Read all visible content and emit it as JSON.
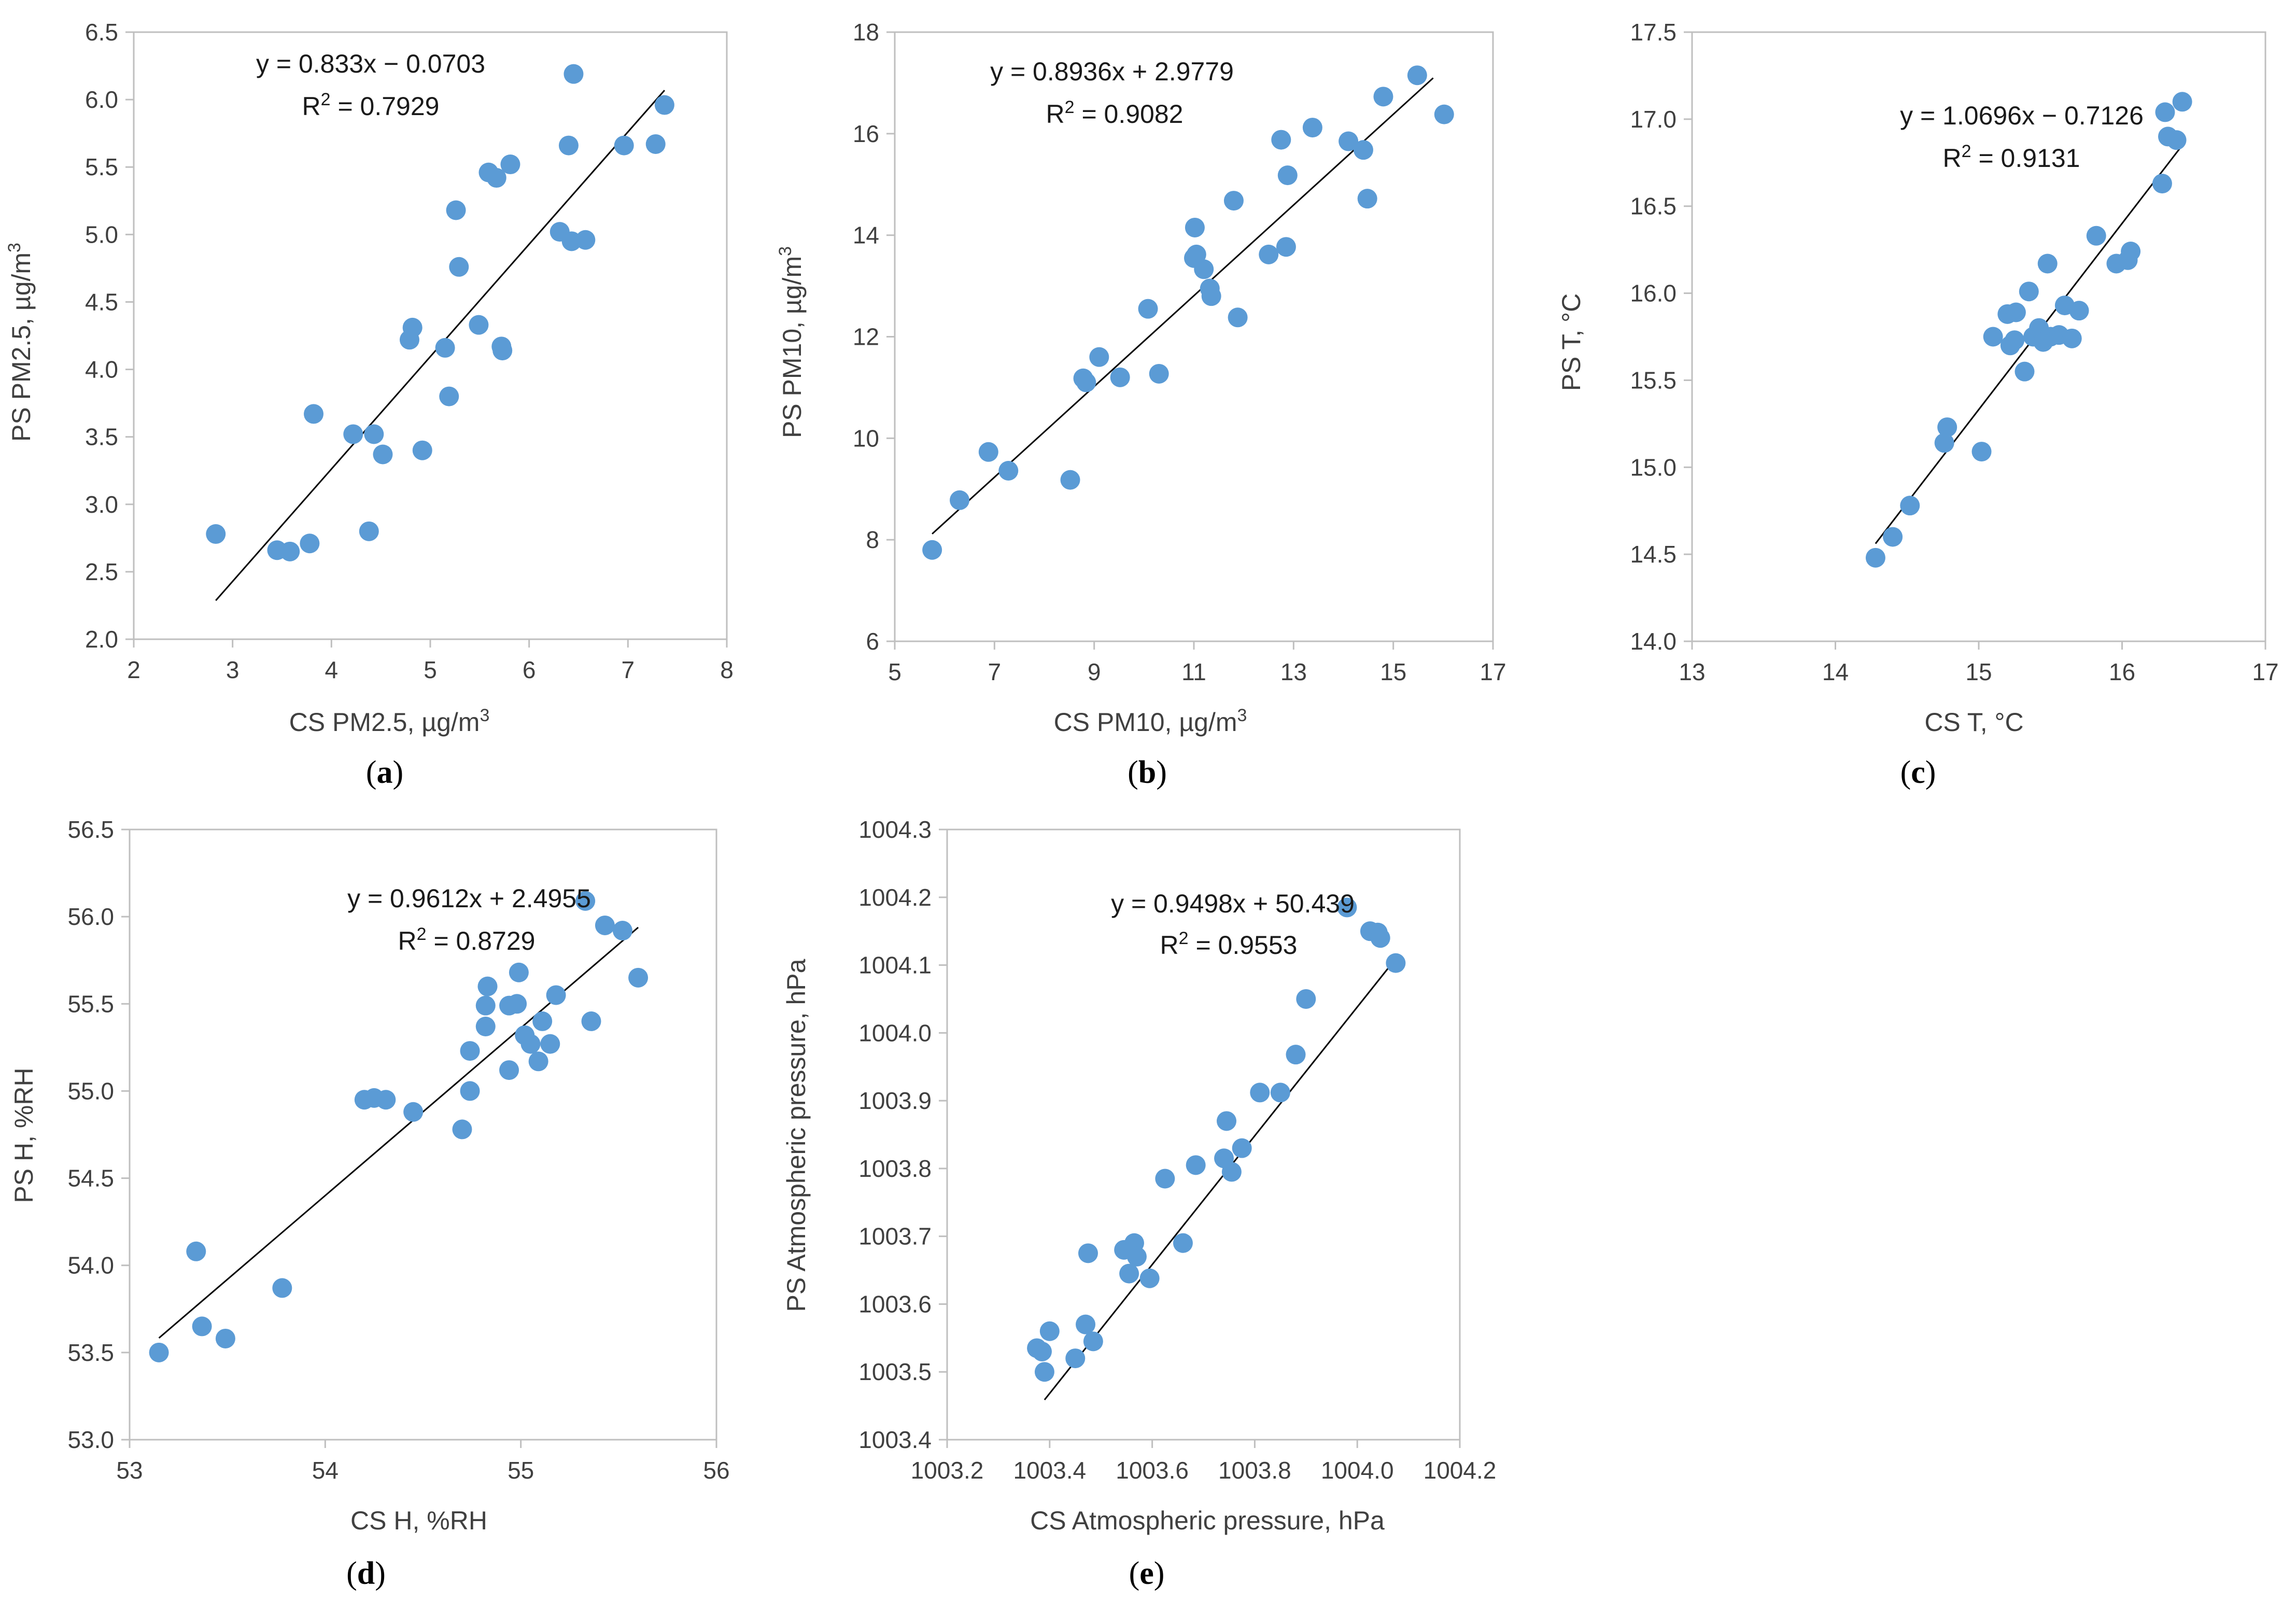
{
  "colors": {
    "point": "#5b9bd5",
    "trendline": "#000000",
    "axis": "#bfbfbf"
  },
  "chart_data": [
    {
      "type": "scatter",
      "caption_letter": "a",
      "title": "",
      "xlabel": "CS PM2.5, µg/m3",
      "ylabel": "PS PM2.5, µg/m3",
      "xlabel_main": "CS PM2.5, µg/m",
      "ylabel_main": "PS PM2.5, µg/m",
      "unit_sup": "3",
      "xlim": [
        2,
        8
      ],
      "ylim": [
        2.0,
        6.5
      ],
      "xticks": [
        "2",
        "3",
        "4",
        "5",
        "6",
        "7",
        "8"
      ],
      "yticks": [
        "2.0",
        "2.5",
        "3.0",
        "3.5",
        "4.0",
        "4.5",
        "5.0",
        "5.5",
        "6.0",
        "6.5"
      ],
      "equation": "y = 0.833x − 0.0703",
      "r2_prefix": "R",
      "r2_sup": "2",
      "r2_value": " = 0.7929",
      "trendline": {
        "slope": 0.833,
        "intercept": -0.0703,
        "x_range": [
          2.83,
          7.37
        ]
      },
      "points": [
        [
          2.83,
          2.78
        ],
        [
          3.45,
          2.66
        ],
        [
          3.58,
          2.65
        ],
        [
          3.78,
          2.71
        ],
        [
          3.82,
          3.67
        ],
        [
          4.22,
          3.52
        ],
        [
          4.38,
          2.8
        ],
        [
          4.43,
          3.52
        ],
        [
          4.52,
          3.37
        ],
        [
          4.79,
          4.22
        ],
        [
          4.82,
          4.31
        ],
        [
          4.92,
          3.4
        ],
        [
          5.15,
          4.16
        ],
        [
          5.19,
          3.8
        ],
        [
          5.26,
          5.18
        ],
        [
          5.29,
          4.76
        ],
        [
          5.49,
          4.33
        ],
        [
          5.59,
          5.46
        ],
        [
          5.67,
          5.42
        ],
        [
          5.72,
          4.17
        ],
        [
          5.73,
          4.14
        ],
        [
          5.81,
          5.52
        ],
        [
          6.31,
          5.02
        ],
        [
          6.4,
          5.66
        ],
        [
          6.43,
          4.95
        ],
        [
          6.45,
          6.19
        ],
        [
          6.57,
          4.96
        ],
        [
          6.96,
          5.66
        ],
        [
          7.28,
          5.67
        ],
        [
          7.37,
          5.96
        ]
      ]
    },
    {
      "type": "scatter",
      "caption_letter": "b",
      "title": "",
      "xlabel": "CS PM10, µg/m3",
      "ylabel": "PS PM10, µg/m3",
      "xlabel_main": "CS PM10, µg/m",
      "ylabel_main": "PS PM10, µg/m",
      "unit_sup": "3",
      "xlim": [
        5,
        17
      ],
      "ylim": [
        6,
        18
      ],
      "xticks": [
        "5",
        "7",
        "9",
        "11",
        "13",
        "15",
        "17"
      ],
      "yticks": [
        "6",
        "8",
        "10",
        "12",
        "14",
        "16",
        "18"
      ],
      "equation": "y = 0.8936x + 2.9779",
      "r2_prefix": "R",
      "r2_sup": "2",
      "r2_value": " = 0.9082",
      "trendline": {
        "slope": 0.8936,
        "intercept": 2.9779,
        "x_range": [
          5.75,
          15.8
        ]
      },
      "points": [
        [
          5.75,
          7.8
        ],
        [
          6.3,
          8.78
        ],
        [
          6.88,
          9.73
        ],
        [
          7.28,
          9.36
        ],
        [
          8.52,
          9.18
        ],
        [
          8.78,
          11.18
        ],
        [
          8.84,
          11.1
        ],
        [
          9.1,
          11.6
        ],
        [
          9.52,
          11.2
        ],
        [
          10.08,
          12.55
        ],
        [
          10.3,
          11.27
        ],
        [
          11.0,
          13.55
        ],
        [
          11.02,
          14.15
        ],
        [
          11.05,
          13.62
        ],
        [
          11.2,
          13.33
        ],
        [
          11.32,
          12.95
        ],
        [
          11.35,
          12.8
        ],
        [
          11.8,
          14.68
        ],
        [
          11.88,
          12.38
        ],
        [
          12.5,
          13.62
        ],
        [
          12.75,
          15.88
        ],
        [
          12.85,
          13.77
        ],
        [
          12.88,
          15.18
        ],
        [
          13.38,
          16.12
        ],
        [
          14.1,
          15.85
        ],
        [
          14.4,
          15.68
        ],
        [
          14.48,
          14.72
        ],
        [
          14.8,
          16.73
        ],
        [
          15.48,
          17.15
        ],
        [
          16.02,
          16.38
        ]
      ]
    },
    {
      "type": "scatter",
      "caption_letter": "c",
      "title": "",
      "xlabel": "CS T, °C",
      "ylabel": "PS T, °C",
      "xlabel_main": "CS T, °C",
      "ylabel_main": "PS T, °C",
      "unit_sup": "",
      "xlim": [
        13,
        17
      ],
      "ylim": [
        14.0,
        17.5
      ],
      "xticks": [
        "13",
        "14",
        "15",
        "16",
        "17"
      ],
      "yticks": [
        "14.0",
        "14.5",
        "15.0",
        "15.5",
        "16.0",
        "16.5",
        "17.0",
        "17.5"
      ],
      "equation": "y = 1.0696x − 0.7126",
      "r2_prefix": "R",
      "r2_sup": "2",
      "r2_value": " = 0.9131",
      "trendline": {
        "slope": 1.0696,
        "intercept": -0.7126,
        "x_range": [
          14.28,
          16.42
        ]
      },
      "points": [
        [
          14.28,
          14.48
        ],
        [
          14.4,
          14.6
        ],
        [
          14.52,
          14.78
        ],
        [
          14.76,
          15.14
        ],
        [
          14.78,
          15.23
        ],
        [
          15.02,
          15.09
        ],
        [
          15.1,
          15.75
        ],
        [
          15.2,
          15.88
        ],
        [
          15.22,
          15.7
        ],
        [
          15.25,
          15.73
        ],
        [
          15.26,
          15.89
        ],
        [
          15.32,
          15.55
        ],
        [
          15.35,
          16.01
        ],
        [
          15.38,
          15.75
        ],
        [
          15.42,
          15.8
        ],
        [
          15.45,
          15.72
        ],
        [
          15.48,
          16.17
        ],
        [
          15.5,
          15.75
        ],
        [
          15.56,
          15.76
        ],
        [
          15.6,
          15.93
        ],
        [
          15.65,
          15.74
        ],
        [
          15.7,
          15.9
        ],
        [
          15.82,
          16.33
        ],
        [
          15.96,
          16.17
        ],
        [
          16.04,
          16.19
        ],
        [
          16.06,
          16.24
        ],
        [
          16.28,
          16.63
        ],
        [
          16.3,
          17.04
        ],
        [
          16.32,
          16.9
        ],
        [
          16.38,
          16.88
        ],
        [
          16.42,
          17.1
        ]
      ]
    },
    {
      "type": "scatter",
      "caption_letter": "d",
      "title": "",
      "xlabel": "CS H, %RH",
      "ylabel": "PS H, %RH",
      "xlabel_main": "CS H, %RH",
      "ylabel_main": "PS H, %RH",
      "unit_sup": "",
      "xlim": [
        53,
        56
      ],
      "ylim": [
        53.0,
        56.5
      ],
      "xticks": [
        "53",
        "54",
        "55",
        "56"
      ],
      "yticks": [
        "53.0",
        "53.5",
        "54.0",
        "54.5",
        "55.0",
        "55.5",
        "56.0",
        "56.5"
      ],
      "equation": "y = 0.9612x + 2.4955",
      "r2_prefix": "R",
      "r2_sup": "2",
      "r2_value": " = 0.8729",
      "trendline": {
        "slope": 0.9612,
        "intercept": 2.4955,
        "x_range": [
          53.15,
          55.6
        ]
      },
      "points": [
        [
          53.15,
          53.5
        ],
        [
          53.34,
          54.08
        ],
        [
          53.37,
          53.65
        ],
        [
          53.49,
          53.58
        ],
        [
          53.78,
          53.87
        ],
        [
          54.2,
          54.95
        ],
        [
          54.25,
          54.96
        ],
        [
          54.31,
          54.95
        ],
        [
          54.45,
          54.88
        ],
        [
          54.7,
          54.78
        ],
        [
          54.74,
          55.0
        ],
        [
          54.74,
          55.23
        ],
        [
          54.82,
          55.37
        ],
        [
          54.82,
          55.49
        ],
        [
          54.83,
          55.6
        ],
        [
          54.94,
          55.12
        ],
        [
          54.94,
          55.49
        ],
        [
          54.98,
          55.5
        ],
        [
          54.99,
          55.68
        ],
        [
          55.02,
          55.32
        ],
        [
          55.05,
          55.27
        ],
        [
          55.09,
          55.17
        ],
        [
          55.11,
          55.4
        ],
        [
          55.15,
          55.27
        ],
        [
          55.18,
          55.55
        ],
        [
          55.33,
          56.09
        ],
        [
          55.36,
          55.4
        ],
        [
          55.43,
          55.95
        ],
        [
          55.52,
          55.92
        ],
        [
          55.6,
          55.65
        ]
      ]
    },
    {
      "type": "scatter",
      "caption_letter": "e",
      "title": "",
      "xlabel": "CS Atmospheric pressure, hPa",
      "ylabel": "PS Atmospheric pressure, hPa",
      "xlabel_main": "CS Atmospheric pressure, hPa",
      "ylabel_main": "PS Atmospheric pressure, hPa",
      "unit_sup": "",
      "xlim": [
        1003.2,
        1004.2
      ],
      "ylim": [
        1003.4,
        1004.3
      ],
      "xticks": [
        "1003.2",
        "1003.4",
        "1003.6",
        "1003.8",
        "1004.0",
        "1004.2"
      ],
      "yticks": [
        "1003.4",
        "1003.5",
        "1003.6",
        "1003.7",
        "1003.8",
        "1003.9",
        "1004.0",
        "1004.1",
        "1004.2",
        "1004.3"
      ],
      "equation": "y = 0.9498x + 50.439",
      "r2_prefix": "R",
      "r2_sup": "2",
      "r2_value": " = 0.9553",
      "trendline": {
        "slope": 0.9498,
        "intercept": 50.439,
        "x_range": [
          1003.39,
          1004.08
        ]
      },
      "points": [
        [
          1003.375,
          1003.535
        ],
        [
          1003.385,
          1003.53
        ],
        [
          1003.39,
          1003.5
        ],
        [
          1003.4,
          1003.56
        ],
        [
          1003.45,
          1003.52
        ],
        [
          1003.47,
          1003.57
        ],
        [
          1003.475,
          1003.675
        ],
        [
          1003.485,
          1003.545
        ],
        [
          1003.545,
          1003.68
        ],
        [
          1003.555,
          1003.645
        ],
        [
          1003.565,
          1003.69
        ],
        [
          1003.57,
          1003.67
        ],
        [
          1003.595,
          1003.638
        ],
        [
          1003.625,
          1003.785
        ],
        [
          1003.66,
          1003.69
        ],
        [
          1003.685,
          1003.805
        ],
        [
          1003.74,
          1003.815
        ],
        [
          1003.745,
          1003.87
        ],
        [
          1003.755,
          1003.795
        ],
        [
          1003.775,
          1003.83
        ],
        [
          1003.81,
          1003.912
        ],
        [
          1003.85,
          1003.912
        ],
        [
          1003.88,
          1003.968
        ],
        [
          1003.9,
          1004.05
        ],
        [
          1003.98,
          1004.185
        ],
        [
          1004.025,
          1004.15
        ],
        [
          1004.04,
          1004.148
        ],
        [
          1004.045,
          1004.14
        ],
        [
          1004.075,
          1004.103
        ]
      ]
    }
  ]
}
